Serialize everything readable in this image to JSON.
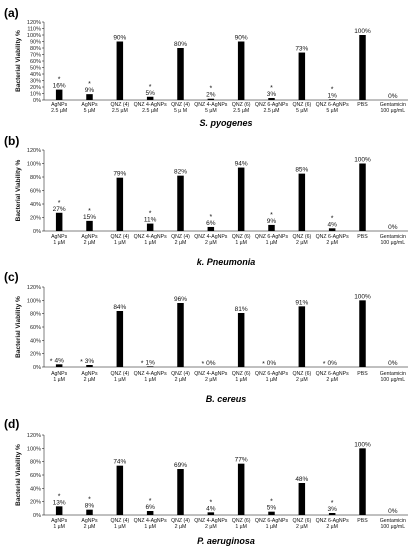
{
  "chart_data": [
    {
      "type": "bar",
      "panel_label": "(a)",
      "xlabel": "S. pyogenes",
      "ylabel": "Bacterial Viability %",
      "ylim": [
        0,
        120
      ],
      "yticks": [
        "0%",
        "10%",
        "20%",
        "30%",
        "40%",
        "50%",
        "60%",
        "70%",
        "80%",
        "90%",
        "100%",
        "110%",
        "120%"
      ],
      "categories": [
        [
          "AgNPs",
          "2.5 µM"
        ],
        [
          "AgNPs",
          "5 µM"
        ],
        [
          "QNZ (4)",
          "2.5 µM"
        ],
        [
          "QNZ 4-AgNPs",
          "2.5 µM"
        ],
        [
          "QNZ (4)",
          "5 µ M"
        ],
        [
          "QNZ 4-AgNPs",
          "5 µM"
        ],
        [
          "QNZ (6)",
          "2.5 µM"
        ],
        [
          "QNZ 6-AgNPs",
          "2.5 µM"
        ],
        [
          "QNZ (6)",
          "5 µM"
        ],
        [
          "QNZ 6-AgNPs",
          "5 µM"
        ],
        [
          "PBS",
          ""
        ],
        [
          "Gentamicin",
          "100 µg/mL"
        ]
      ],
      "values": [
        16,
        9,
        90,
        5,
        80,
        2,
        90,
        3,
        73,
        1,
        100,
        0
      ],
      "labels": [
        "16%",
        "9%",
        "90%",
        "5%",
        "80%",
        "2%",
        "90%",
        "3%",
        "73%",
        "1%",
        "100%",
        "0%"
      ],
      "significant": [
        true,
        true,
        false,
        true,
        false,
        true,
        false,
        true,
        false,
        true,
        false,
        false
      ]
    },
    {
      "type": "bar",
      "panel_label": "(b)",
      "xlabel": "k. Pneumonia",
      "ylabel": "Bacterial Viability %",
      "ylim": [
        0,
        120
      ],
      "yticks": [
        "0%",
        "20%",
        "40%",
        "60%",
        "80%",
        "100%",
        "120%"
      ],
      "categories": [
        [
          "AgNPs",
          "1 µM"
        ],
        [
          "AgNPs",
          "2 µM"
        ],
        [
          "QNZ (4)",
          "1 µM"
        ],
        [
          "QNZ 4-AgNPs",
          "1 µM"
        ],
        [
          "QNZ (4)",
          "2 µM"
        ],
        [
          "QNZ 4-AgNPs",
          "2 µM"
        ],
        [
          "QNZ (6)",
          "1 µM"
        ],
        [
          "QNZ 6-AgNPs",
          "1 µM"
        ],
        [
          "QNZ (6)",
          "2 µM"
        ],
        [
          "QNZ 6-AgNPs",
          "2 µM"
        ],
        [
          "PBS",
          ""
        ],
        [
          "Gentamicin",
          "100 µg/mL"
        ]
      ],
      "values": [
        27,
        15,
        79,
        11,
        82,
        6,
        94,
        9,
        85,
        4,
        100,
        0
      ],
      "labels": [
        "27%",
        "15%",
        "79%",
        "11%",
        "82%",
        "6%",
        "94%",
        "9%",
        "85%",
        "4%",
        "100%",
        "0%"
      ],
      "significant": [
        true,
        true,
        false,
        true,
        false,
        true,
        false,
        true,
        false,
        true,
        false,
        false
      ]
    },
    {
      "type": "bar",
      "panel_label": "(c)",
      "xlabel": "B. cereus",
      "ylabel": "Bacterial Viability %",
      "ylim": [
        0,
        120
      ],
      "yticks": [
        "0%",
        "20%",
        "40%",
        "60%",
        "80%",
        "100%",
        "120%"
      ],
      "categories": [
        [
          "AgNPs",
          "1 µM"
        ],
        [
          "AgNPs",
          "2 µM"
        ],
        [
          "QNZ (4)",
          "1 µM"
        ],
        [
          "QNZ 4-AgNPs",
          "1 µM"
        ],
        [
          "QNZ (4)",
          "2 µM"
        ],
        [
          "QNZ 4-AgNPs",
          "2 µM"
        ],
        [
          "QNZ (6)",
          "1 µM"
        ],
        [
          "QNZ 6-AgNPs",
          "1 µM"
        ],
        [
          "QNZ (6)",
          "2 µM"
        ],
        [
          "QNZ 6-AgNPs",
          "2 µM"
        ],
        [
          "PBS",
          ""
        ],
        [
          "Gentamicin",
          "100 µg/mL"
        ]
      ],
      "values": [
        4,
        3,
        84,
        1,
        96,
        0,
        81,
        0,
        91,
        0,
        100,
        0
      ],
      "labels": [
        "4%",
        "3%",
        "84%",
        "1%",
        "96%",
        "0%",
        "81%",
        "0%",
        "91%",
        "0%",
        "100%",
        "0%"
      ],
      "significant": [
        true,
        true,
        false,
        true,
        false,
        true,
        false,
        true,
        false,
        true,
        false,
        false
      ]
    },
    {
      "type": "bar",
      "panel_label": "(d)",
      "xlabel": "P. aeruginosa",
      "ylabel": "Bacterial Viability %",
      "ylim": [
        0,
        120
      ],
      "yticks": [
        "0%",
        "20%",
        "40%",
        "60%",
        "80%",
        "100%",
        "120%"
      ],
      "categories": [
        [
          "AgNPs",
          "1 µM"
        ],
        [
          "AgNPs",
          "2 µM"
        ],
        [
          "QNZ (4)",
          "1 µM"
        ],
        [
          "QNZ 4-AgNPs",
          "1 µM"
        ],
        [
          "QNZ (4)",
          "2 µM"
        ],
        [
          "QNZ 4-AgNPs",
          "2 µM"
        ],
        [
          "QNZ (6)",
          "1 µM"
        ],
        [
          "QNZ 6-AgNPs",
          "1 µM"
        ],
        [
          "QNZ (6)",
          "2 µM"
        ],
        [
          "QNZ 6-AgNPs",
          "2 µM"
        ],
        [
          "PBS",
          ""
        ],
        [
          "Gentamicin",
          "100 µg/mL"
        ]
      ],
      "values": [
        13,
        8,
        74,
        6,
        69,
        4,
        77,
        5,
        48,
        3,
        100,
        0
      ],
      "labels": [
        "13%",
        "8%",
        "74%",
        "6%",
        "69%",
        "4%",
        "77%",
        "5%",
        "48%",
        "3%",
        "100%",
        "0%"
      ],
      "significant": [
        true,
        true,
        false,
        true,
        false,
        true,
        false,
        true,
        false,
        true,
        false,
        false
      ]
    }
  ]
}
